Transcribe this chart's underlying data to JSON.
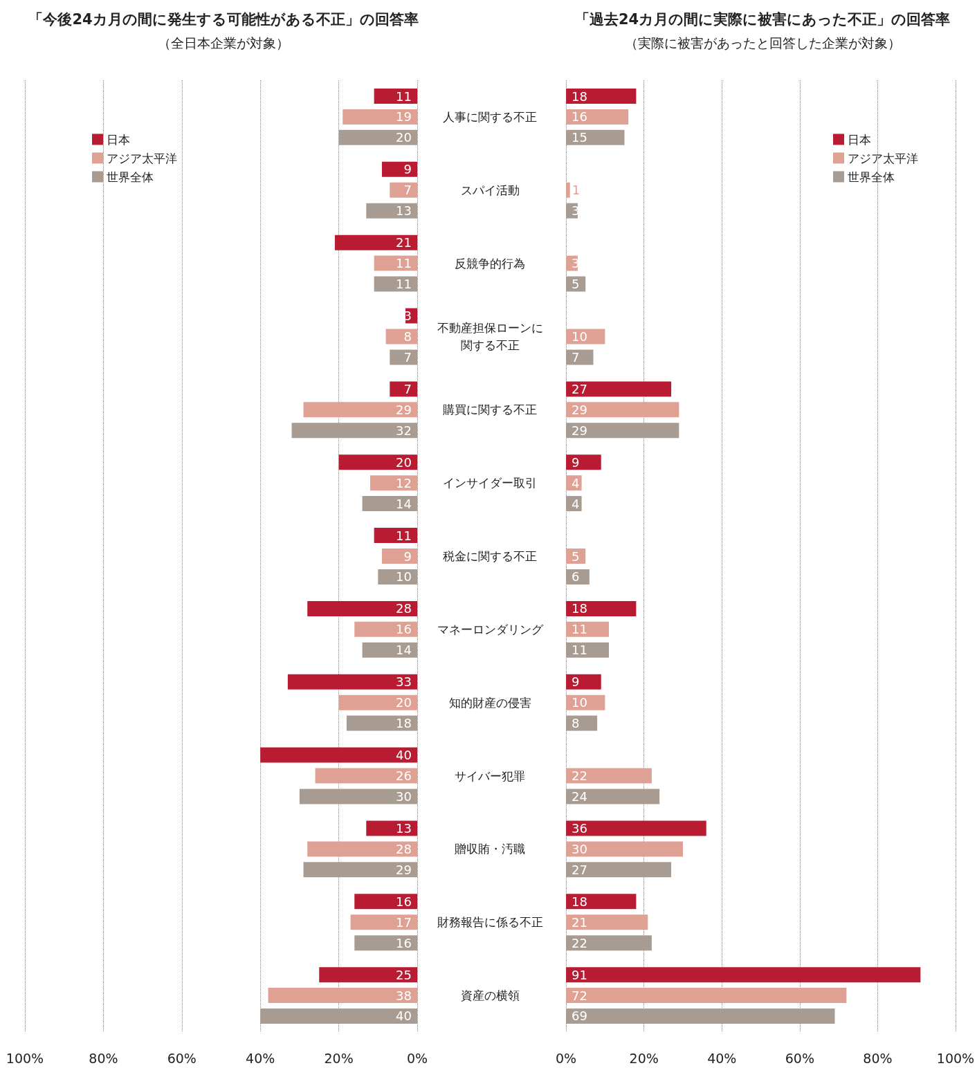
{
  "chart_data": [
    {
      "type": "bar",
      "orientation": "horizontal",
      "title": "「今後24カ月の間に発生する可能性がある不正」の回答率",
      "subtitle": "（全日本企業が対象）",
      "categories": [
        "人事に関する不正",
        "スパイ活動",
        "反競争的行為",
        "不動産担保ローンに関する不正",
        "購買に関する不正",
        "インサイダー取引",
        "税金に関する不正",
        "マネーロンダリング",
        "知的財産の侵害",
        "サイバー犯罪",
        "贈収賄・汚職",
        "財務報告に係る不正",
        "資産の横領"
      ],
      "series": [
        {
          "name": "日本",
          "color": "#b91c32",
          "values": [
            11,
            9,
            21,
            3,
            7,
            20,
            11,
            28,
            33,
            40,
            13,
            16,
            25
          ]
        },
        {
          "name": "アジア太平洋",
          "color": "#e0a195",
          "values": [
            19,
            7,
            11,
            8,
            29,
            12,
            9,
            16,
            20,
            26,
            28,
            17,
            38
          ]
        },
        {
          "name": "世界全体",
          "color": "#a89b92",
          "values": [
            20,
            13,
            11,
            7,
            32,
            14,
            10,
            14,
            18,
            30,
            29,
            16,
            40
          ]
        }
      ],
      "xlim": [
        100,
        0
      ],
      "xticks": [
        {
          "value": 0,
          "label": "0%"
        },
        {
          "value": 20,
          "label": "20%"
        },
        {
          "value": 40,
          "label": "40%"
        },
        {
          "value": 60,
          "label": "60%"
        },
        {
          "value": 80,
          "label": "80%"
        },
        {
          "value": 100,
          "label": "100%"
        }
      ],
      "grid": "x",
      "legend": "top left",
      "data_labels": true
    },
    {
      "type": "bar",
      "orientation": "horizontal",
      "title": "「過去24カ月の間に実際に被害にあった不正」の回答率",
      "subtitle": "（実際に被害があったと回答した企業が対象）",
      "categories": [
        "人事に関する不正",
        "スパイ活動",
        "反競争的行為",
        "不動産担保ローンに関する不正",
        "購買に関する不正",
        "インサイダー取引",
        "税金に関する不正",
        "マネーロンダリング",
        "知的財産の侵害",
        "サイバー犯罪",
        "贈収賄・汚職",
        "財務報告に係る不正",
        "資産の横領"
      ],
      "series": [
        {
          "name": "日本",
          "color": "#b91c32",
          "values": [
            18,
            null,
            null,
            null,
            27,
            9,
            null,
            18,
            9,
            null,
            36,
            18,
            91
          ]
        },
        {
          "name": "アジア太平洋",
          "color": "#e0a195",
          "values": [
            16,
            1,
            3,
            10,
            29,
            4,
            5,
            11,
            10,
            22,
            30,
            21,
            72
          ]
        },
        {
          "name": "世界全体",
          "color": "#a89b92",
          "values": [
            15,
            3,
            5,
            7,
            29,
            4,
            6,
            11,
            8,
            24,
            27,
            22,
            69
          ]
        }
      ],
      "xlim": [
        0,
        100
      ],
      "xticks": [
        {
          "value": 0,
          "label": "0%"
        },
        {
          "value": 20,
          "label": "20%"
        },
        {
          "value": 40,
          "label": "40%"
        },
        {
          "value": 60,
          "label": "60%"
        },
        {
          "value": 80,
          "label": "80%"
        },
        {
          "value": 100,
          "label": "100%"
        }
      ],
      "tick_labels": "x",
      "grid": "x",
      "legend": "top right",
      "data_labels": true
    }
  ]
}
